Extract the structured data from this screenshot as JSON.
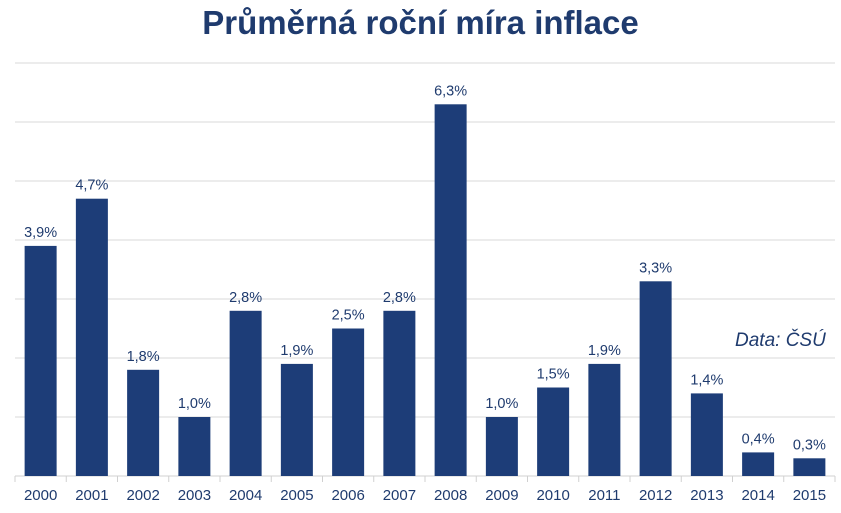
{
  "chart_data": {
    "type": "bar",
    "title": "Průměrná roční míra inflace",
    "source": "Data: ČSÚ",
    "categories": [
      "2000",
      "2001",
      "2002",
      "2003",
      "2004",
      "2005",
      "2006",
      "2007",
      "2008",
      "2009",
      "2010",
      "2011",
      "2012",
      "2013",
      "2014",
      "2015"
    ],
    "values": [
      3.9,
      4.7,
      1.8,
      1.0,
      2.8,
      1.9,
      2.5,
      2.8,
      6.3,
      1.0,
      1.5,
      1.9,
      3.3,
      1.4,
      0.4,
      0.3
    ],
    "labels": [
      "3,9%",
      "4,7%",
      "1,8%",
      "1,0%",
      "2,8%",
      "1,9%",
      "2,5%",
      "2,8%",
      "6,3%",
      "1,0%",
      "1,5%",
      "1,9%",
      "3,3%",
      "1,4%",
      "0,4%",
      "0,3%"
    ],
    "xlabel": "",
    "ylabel": "",
    "ylim": [
      0,
      7
    ],
    "grid": true,
    "bar_color": "#1d3d78"
  }
}
